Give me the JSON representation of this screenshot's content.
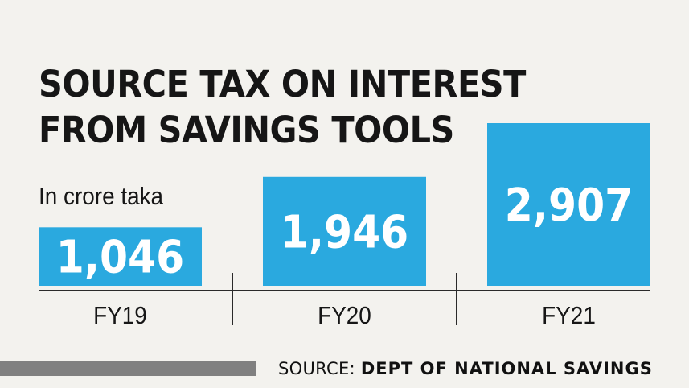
{
  "chart_data": {
    "type": "bar",
    "title": "SOURCE TAX ON INTEREST FROM SAVINGS TOOLS",
    "subtitle": "In crore taka",
    "categories": [
      "FY19",
      "FY20",
      "FY21"
    ],
    "values": [
      1046,
      1946,
      2907
    ],
    "value_labels": [
      "1,046",
      "1,946",
      "2,907"
    ],
    "bar_color": "#2aa9df",
    "ylim": [
      0,
      2907
    ],
    "grid": false,
    "legend": "none"
  },
  "source": {
    "prefix": "SOURCE: ",
    "name": "DEPT OF NATIONAL SAVINGS"
  }
}
